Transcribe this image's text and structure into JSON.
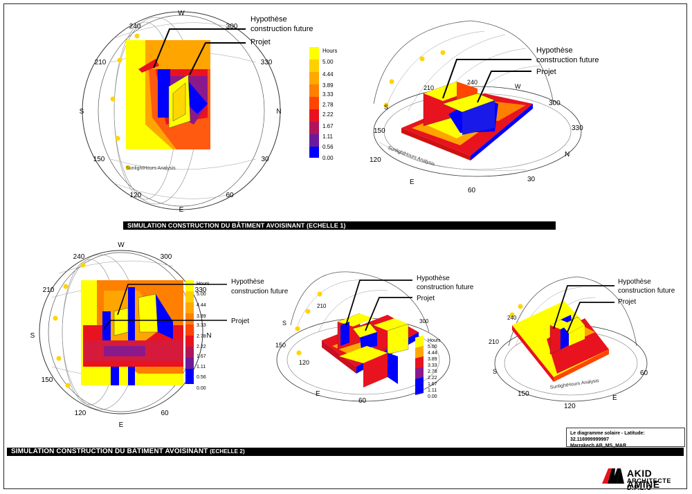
{
  "labels": {
    "hypothese": "Hypothèse",
    "construction_future": "construction future",
    "projet": "Projet",
    "analysis": "SunlightHours Analysis"
  },
  "compass": {
    "n": "N",
    "s": "S",
    "e": "E",
    "w": "W",
    "a30": "30",
    "a60": "60",
    "a120": "120",
    "a150": "150",
    "a210": "210",
    "a240": "240",
    "a300": "300",
    "a330": "330"
  },
  "legend": {
    "title": "Hours",
    "values": [
      "5.00",
      "4.44",
      "3.89",
      "3.33",
      "2.78",
      "2.22",
      "1.67",
      "1.11",
      "0.56",
      "0.00"
    ],
    "colors": [
      "#ffff00",
      "#ffd000",
      "#ffa800",
      "#ff7f00",
      "#ff4500",
      "#e8131e",
      "#b0155a",
      "#6b1a9c",
      "#2e16d6",
      "#0000ff"
    ]
  },
  "banners": {
    "scale1": "SIMULATION CONSTRUCTION DU BÂTIMENT AVOISINANT (ECHELLE 1)",
    "scale2": "SIMULATION CONSTRUCTION DU BÂTIMENT AVOISINANT",
    "scale2_suffix": "(ECHELLE 2)"
  },
  "info": {
    "line1": "Le diagramme solaire - Latitude: 32.116999999997",
    "line2": "Marrakech AB_MS_MAR"
  },
  "firm": {
    "name": "AKID  AMINE",
    "title": "ARCHITECTE  D.P.L.G"
  },
  "colors": {
    "yellow": "#ffff00",
    "orange": "#ffa500",
    "red": "#e8131e",
    "blue": "#0000ff"
  }
}
